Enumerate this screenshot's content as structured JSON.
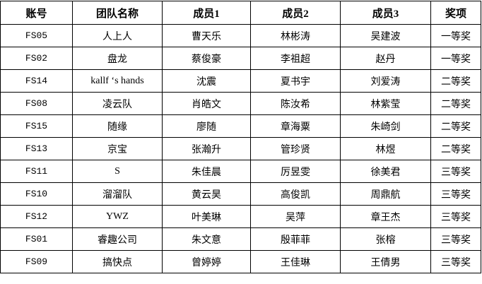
{
  "table": {
    "header": [
      "账号",
      "团队名称",
      "成员1",
      "成员2",
      "成员3",
      "奖项"
    ],
    "rows": [
      [
        "FS05",
        "人上人",
        "曹天乐",
        "林彬涛",
        "吴建波",
        "一等奖"
      ],
      [
        "FS02",
        "盘龙",
        "蔡俊豪",
        "李祖超",
        "赵丹",
        "一等奖"
      ],
      [
        "FS14",
        "kallf ‘s hands",
        "沈震",
        "夏书宇",
        "刘爱涛",
        "二等奖"
      ],
      [
        "FS08",
        "凌云队",
        "肖皓文",
        "陈汝希",
        "林紫莹",
        "二等奖"
      ],
      [
        "FS15",
        "随缘",
        "廖随",
        "章海粟",
        "朱崎剑",
        "二等奖"
      ],
      [
        "FS13",
        "京宝",
        "张瀚升",
        "管珍贤",
        "林煜",
        "二等奖"
      ],
      [
        "FS11",
        "S",
        "朱佳晨",
        "厉昱雯",
        "徐美君",
        "三等奖"
      ],
      [
        "FS10",
        "溜溜队",
        "黄云昊",
        "高俊凯",
        "周鼎航",
        "三等奖"
      ],
      [
        "FS12",
        "YWZ",
        "叶美琳",
        "吴萍",
        "章王杰",
        "三等奖"
      ],
      [
        "FS01",
        "睿趣公司",
        "朱文意",
        "殷菲菲",
        "张榕",
        "三等奖"
      ],
      [
        "FS09",
        "搞快点",
        "曾婷婷",
        "王佳琳",
        "王倩男",
        "三等奖"
      ]
    ]
  }
}
